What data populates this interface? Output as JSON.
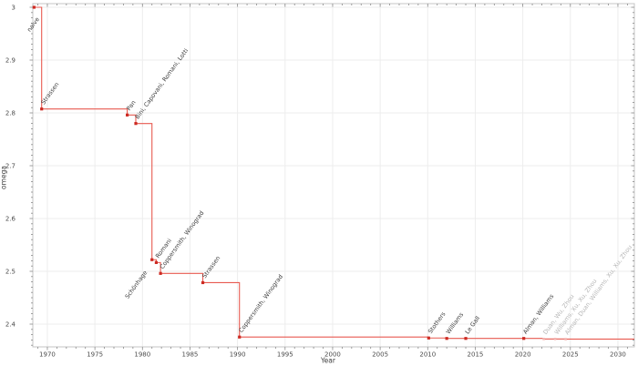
{
  "chart_data": {
    "type": "line",
    "step_style": "pre",
    "title": "",
    "xlabel": "Year",
    "ylabel": "omega",
    "xlim": [
      1968.47,
      2031.73
    ],
    "ylim": [
      2.3569,
      3.0069
    ],
    "grid": true,
    "legend": null,
    "x_major_ticks": [
      {
        "v": 1970,
        "label": "1970"
      },
      {
        "v": 1975,
        "label": "1975"
      },
      {
        "v": 1980,
        "label": "1980"
      },
      {
        "v": 1985,
        "label": "1985"
      },
      {
        "v": 1990,
        "label": "1990"
      },
      {
        "v": 1995,
        "label": "1995"
      },
      {
        "v": 2000,
        "label": "2000"
      },
      {
        "v": 2005,
        "label": "2005"
      },
      {
        "v": 2010,
        "label": "2010"
      },
      {
        "v": 2015,
        "label": "2015"
      },
      {
        "v": 2020,
        "label": "2020"
      },
      {
        "v": 2025,
        "label": "2025"
      },
      {
        "v": 2030,
        "label": "2030"
      }
    ],
    "x_minor_step": 1,
    "y_major_ticks": [
      {
        "v": 2.4,
        "label": "2.4"
      },
      {
        "v": 2.5,
        "label": "2.5"
      },
      {
        "v": 2.6,
        "label": "2.6"
      },
      {
        "v": 2.7,
        "label": "2.7"
      },
      {
        "v": 2.8,
        "label": "2.8"
      },
      {
        "v": 2.9,
        "label": "2.9"
      },
      {
        "v": 3.0,
        "label": "3"
      }
    ],
    "y_minor_step": 0.01,
    "points": [
      {
        "year": 1968.6,
        "omega": 3.0,
        "label": "naive",
        "muted": false,
        "label_side": "below",
        "label_offset": [
          6,
          13
        ]
      },
      {
        "year": 1969.4,
        "omega": 2.8074,
        "label": "Strassen",
        "muted": false,
        "label_side": "above"
      },
      {
        "year": 1978.4,
        "omega": 2.796,
        "label": "Pan",
        "muted": false,
        "label_side": "above"
      },
      {
        "year": 1979.3,
        "omega": 2.7799,
        "label": "Bini, Capovani, Romani, Lotti",
        "muted": false,
        "label_side": "above"
      },
      {
        "year": 1981.0,
        "omega": 2.522,
        "label": "Schönhage",
        "muted": false,
        "label_side": "below",
        "label_offset": [
          -5,
          14
        ]
      },
      {
        "year": 1981.45,
        "omega": 2.5166,
        "label": "Romani",
        "muted": false,
        "label_side": "above"
      },
      {
        "year": 1981.9,
        "omega": 2.496,
        "label": "Coppersmith, Winograd",
        "muted": false,
        "label_side": "above"
      },
      {
        "year": 1986.35,
        "omega": 2.4785,
        "label": "Strassen",
        "muted": false,
        "label_side": "above"
      },
      {
        "year": 1990.2,
        "omega": 2.3755,
        "label": "Coppersmith, Winograd",
        "muted": false,
        "label_side": "above"
      },
      {
        "year": 2010.1,
        "omega": 2.3737,
        "label": "Stothers",
        "muted": false,
        "label_side": "above"
      },
      {
        "year": 2012.0,
        "omega": 2.3729,
        "label": "Williams",
        "muted": false,
        "label_side": "above"
      },
      {
        "year": 2014.0,
        "omega": 2.3729,
        "label": "Le Gall",
        "muted": false,
        "label_side": "above"
      },
      {
        "year": 2020.1,
        "omega": 2.3729,
        "label": "Alman, Williams",
        "muted": false,
        "label_side": "above"
      },
      {
        "year": 2022.2,
        "omega": 2.3719,
        "label": "Duan, Wu, Zhou",
        "muted": true,
        "label_side": "above"
      },
      {
        "year": 2023.4,
        "omega": 2.3719,
        "label": "Williams, Xu, Xu, Zhou",
        "muted": true,
        "label_side": "above"
      },
      {
        "year": 2024.5,
        "omega": 2.3716,
        "label": "Alman, Duan, Williams, Xu, Xu, Zhou",
        "muted": true,
        "label_side": "above"
      }
    ],
    "colors": {
      "line": "#e85a50",
      "marker": "#cc2a22",
      "muted_marker": "#f2b4b0",
      "label": "#3c3c3c",
      "muted_label": "#b6b6b6",
      "grid": "#ededed",
      "spine": "#c4c4c4",
      "tick": "#8a8a8a"
    }
  }
}
